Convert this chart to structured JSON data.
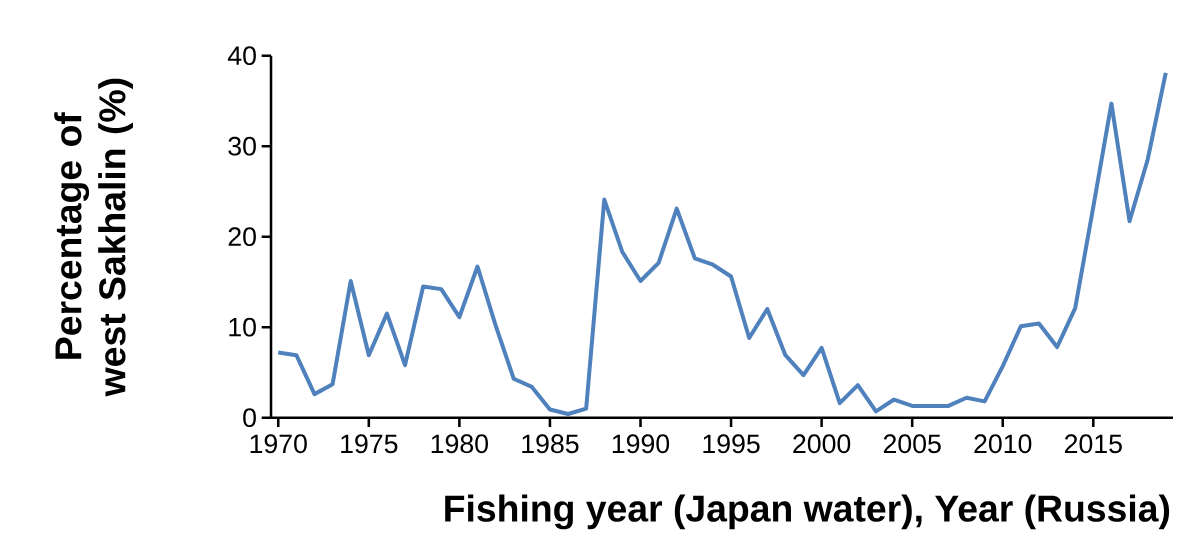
{
  "chart_data": {
    "type": "line",
    "xlabel": "Fishing year (Japan water), Year (Russia)",
    "ylabel": "Percentage of west Sakhalin (%)",
    "x": [
      1970,
      1971,
      1972,
      1973,
      1974,
      1975,
      1976,
      1977,
      1978,
      1979,
      1980,
      1981,
      1982,
      1983,
      1984,
      1985,
      1986,
      1987,
      1988,
      1989,
      1990,
      1991,
      1992,
      1993,
      1994,
      1995,
      1996,
      1997,
      1998,
      1999,
      2000,
      2001,
      2002,
      2003,
      2004,
      2005,
      2006,
      2007,
      2008,
      2009,
      2010,
      2011,
      2012,
      2013,
      2014,
      2015,
      2016,
      2017,
      2018,
      2019
    ],
    "values": [
      7.2,
      6.9,
      2.6,
      3.7,
      15.1,
      6.9,
      11.5,
      5.8,
      14.5,
      14.2,
      11.1,
      16.7,
      10.2,
      4.3,
      3.4,
      0.9,
      0.4,
      1.0,
      24.1,
      18.3,
      15.1,
      17.1,
      23.1,
      17.6,
      16.9,
      15.6,
      8.8,
      12.0,
      6.9,
      4.7,
      7.7,
      1.6,
      3.6,
      0.7,
      2.0,
      1.3,
      1.3,
      1.3,
      2.2,
      1.8,
      5.7,
      10.1,
      10.4,
      7.8,
      12.1,
      23.3,
      34.7,
      21.7,
      28.5,
      38.1
    ],
    "color": "#4f81bd",
    "marker": "none",
    "line_style": "solid",
    "xlim": [
      1969.6,
      2019.4
    ],
    "xticks": [
      1970,
      1975,
      1980,
      1985,
      1990,
      1995,
      2000,
      2005,
      2010,
      2015
    ],
    "ylim": [
      0,
      40
    ],
    "yticks": [
      0,
      10,
      20,
      30,
      40
    ]
  }
}
